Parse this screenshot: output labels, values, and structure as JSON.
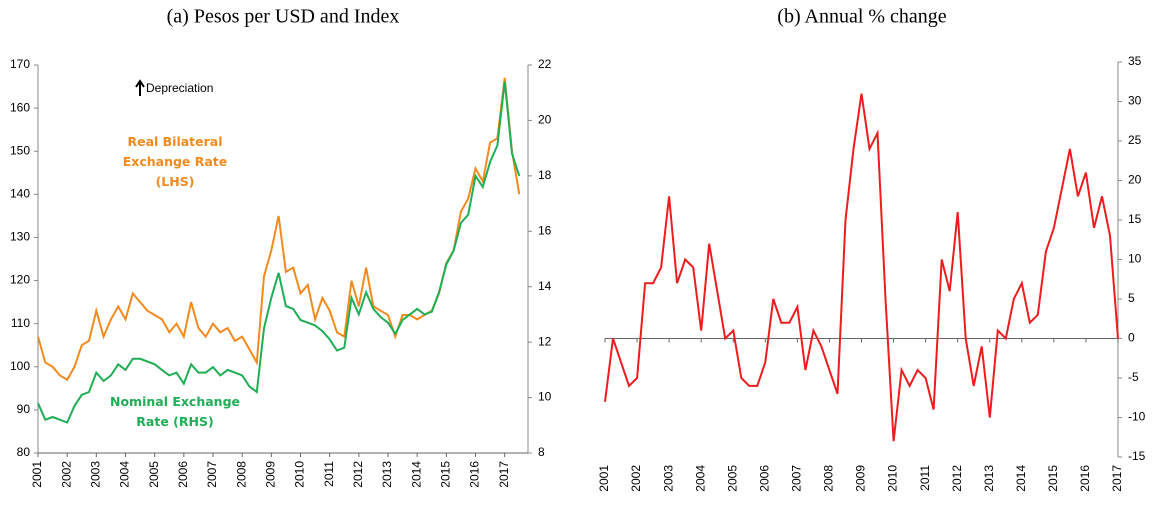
{
  "chart_data": [
    {
      "type": "line",
      "title": "(a) Pesos per USD and Index",
      "annotation": "Depreciation",
      "x": [
        2001,
        2001.25,
        2001.5,
        2001.75,
        2002,
        2002.25,
        2002.5,
        2002.75,
        2003,
        2003.25,
        2003.5,
        2003.75,
        2004,
        2004.25,
        2004.5,
        2004.75,
        2005,
        2005.25,
        2005.5,
        2005.75,
        2006,
        2006.25,
        2006.5,
        2006.75,
        2007,
        2007.25,
        2007.5,
        2007.75,
        2008,
        2008.25,
        2008.5,
        2008.75,
        2009,
        2009.25,
        2009.5,
        2009.75,
        2010,
        2010.25,
        2010.5,
        2010.75,
        2011,
        2011.25,
        2011.5,
        2011.75,
        2012,
        2012.25,
        2012.5,
        2012.75,
        2013,
        2013.25,
        2013.5,
        2013.75,
        2014,
        2014.25,
        2014.5,
        2014.75,
        2015,
        2015.25,
        2015.5,
        2015.75,
        2016,
        2016.25,
        2016.5,
        2016.75,
        2017,
        2017.25,
        2017.5
      ],
      "series": [
        {
          "name": "Real Bilateral Exchange Rate (LHS)",
          "color": "#f28a1e",
          "values": [
            107,
            101,
            100,
            98,
            97,
            100,
            105,
            106,
            113,
            107,
            111,
            114,
            111,
            117,
            115,
            113,
            112,
            111,
            108,
            110,
            107,
            115,
            109,
            107,
            110,
            108,
            109,
            106,
            107,
            104,
            101,
            121,
            127,
            135,
            122,
            123,
            117,
            119,
            111,
            116,
            113,
            108,
            107,
            120,
            114,
            123,
            114,
            113,
            112,
            107,
            112,
            112,
            111,
            112,
            113,
            117,
            124,
            127,
            136,
            139,
            146,
            143,
            152,
            153,
            167,
            150,
            140
          ]
        },
        {
          "name": "Nominal Exchange Rate (RHS)",
          "color": "#1fae55",
          "axis": "y2",
          "values": [
            9.8,
            9.2,
            9.3,
            9.2,
            9.1,
            9.7,
            10.1,
            10.2,
            10.9,
            10.6,
            10.8,
            11.2,
            11.0,
            11.4,
            11.4,
            11.3,
            11.2,
            11.0,
            10.8,
            10.9,
            10.5,
            11.2,
            10.9,
            10.9,
            11.1,
            10.8,
            11.0,
            10.9,
            10.8,
            10.4,
            10.2,
            12.5,
            13.6,
            14.5,
            13.3,
            13.2,
            12.8,
            12.7,
            12.6,
            12.4,
            12.1,
            11.7,
            11.8,
            13.6,
            13.0,
            13.8,
            13.2,
            12.9,
            12.7,
            12.3,
            12.8,
            13.0,
            13.2,
            13.0,
            13.1,
            13.8,
            14.8,
            15.3,
            16.3,
            16.6,
            18.0,
            17.6,
            18.5,
            19.1,
            21.4,
            18.8,
            18.0
          ]
        }
      ],
      "xlim": [
        2001,
        2017.8
      ],
      "xticks": [
        2001,
        2002,
        2003,
        2004,
        2005,
        2006,
        2007,
        2008,
        2009,
        2010,
        2011,
        2012,
        2013,
        2014,
        2015,
        2016,
        2017
      ],
      "ylim": [
        80,
        170
      ],
      "yticks": [
        80,
        90,
        100,
        110,
        120,
        130,
        140,
        150,
        160,
        170
      ],
      "y2lim": [
        8,
        22
      ],
      "y2ticks": [
        8,
        10,
        12,
        14,
        16,
        18,
        20,
        22
      ]
    },
    {
      "type": "line",
      "title": "(b) Annual % change",
      "color": "#ee1c1c",
      "x": [
        2001,
        2001.25,
        2001.5,
        2001.75,
        2002,
        2002.25,
        2002.5,
        2002.75,
        2003,
        2003.25,
        2003.5,
        2003.75,
        2004,
        2004.25,
        2004.5,
        2004.75,
        2005,
        2005.25,
        2005.5,
        2005.75,
        2006,
        2006.25,
        2006.5,
        2006.75,
        2007,
        2007.25,
        2007.5,
        2007.75,
        2008,
        2008.25,
        2008.5,
        2008.75,
        2009,
        2009.25,
        2009.5,
        2009.75,
        2010,
        2010.25,
        2010.5,
        2010.75,
        2011,
        2011.25,
        2011.5,
        2011.75,
        2012,
        2012.25,
        2012.5,
        2012.75,
        2013,
        2013.25,
        2013.5,
        2013.75,
        2014,
        2014.25,
        2014.5,
        2014.75,
        2015,
        2015.25,
        2015.5,
        2015.75,
        2016,
        2016.25,
        2016.5,
        2016.75,
        2017
      ],
      "values": [
        -8,
        0,
        -3,
        -6,
        -5,
        7,
        7,
        9,
        18,
        7,
        10,
        9,
        1,
        12,
        6,
        0,
        1,
        -5,
        -6,
        -6,
        -3,
        5,
        2,
        2,
        4,
        -4,
        1,
        -1,
        -4,
        -7,
        15,
        24,
        31,
        24,
        26,
        5,
        -13,
        -4,
        -6,
        -4,
        -5,
        -9,
        10,
        6,
        16,
        0,
        -6,
        -1,
        -10,
        1,
        0,
        5,
        7,
        2,
        3,
        11,
        14,
        19,
        24,
        18,
        21,
        14,
        18,
        13,
        0
      ],
      "xlim": [
        2001,
        2017
      ],
      "xticks": [
        2001,
        2002,
        2003,
        2004,
        2005,
        2006,
        2007,
        2008,
        2009,
        2010,
        2011,
        2012,
        2013,
        2014,
        2015,
        2016,
        2017
      ],
      "ylim": [
        -15,
        35
      ],
      "yticks": [
        -15,
        -10,
        -5,
        0,
        5,
        10,
        15,
        20,
        25,
        30,
        35
      ]
    }
  ]
}
